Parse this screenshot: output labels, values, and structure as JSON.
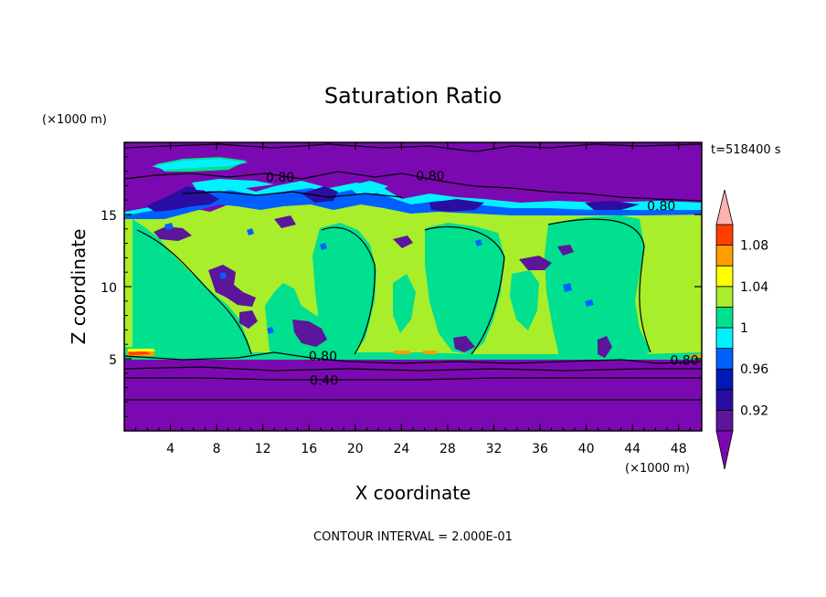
{
  "chart_data": {
    "type": "heatmap",
    "title": "Saturation Ratio",
    "xlabel": "X coordinate",
    "ylabel": "Z coordinate",
    "x_unit": "(×1000 m)",
    "y_unit": "(×1000 m)",
    "xlim": [
      0,
      50
    ],
    "ylim": [
      0,
      20
    ],
    "x_ticks": [
      4,
      8,
      12,
      16,
      20,
      24,
      28,
      32,
      36,
      40,
      44,
      48
    ],
    "y_ticks": [
      5,
      10,
      15
    ],
    "time_label": "t=518400 s",
    "footer": "CONTOUR INTERVAL = 2.000E-01",
    "colorbar": {
      "levels": [
        0.9,
        0.92,
        0.94,
        0.96,
        0.98,
        1.0,
        1.02,
        1.04,
        1.06,
        1.08,
        1.1
      ],
      "labels": [
        "0.92",
        "0.96",
        "1",
        "1.04",
        "1.08"
      ],
      "label_values": [
        0.92,
        0.96,
        1.0,
        1.04,
        1.08
      ],
      "colors": [
        "#5b169b",
        "#2a0ea3",
        "#0018b6",
        "#0060ff",
        "#00f2ff",
        "#00e08f",
        "#a8ee2a",
        "#ffff00",
        "#ff9d00",
        "#ff3e00",
        "#ffb0b0"
      ],
      "over_color": "#ffb0b0",
      "under_color": "#7b09b1"
    },
    "contour_labels": [
      {
        "text": "0.80",
        "x": 13.5,
        "z": 17.6
      },
      {
        "text": "0.80",
        "x": 26.5,
        "z": 17.7
      },
      {
        "text": "0.80",
        "x": 46.5,
        "z": 15.6
      },
      {
        "text": "0.80",
        "x": 17.2,
        "z": 5.2
      },
      {
        "text": "0.80",
        "x": 48.5,
        "z": 4.9
      },
      {
        "text": "0.40",
        "x": 17.3,
        "z": 3.5
      }
    ]
  }
}
